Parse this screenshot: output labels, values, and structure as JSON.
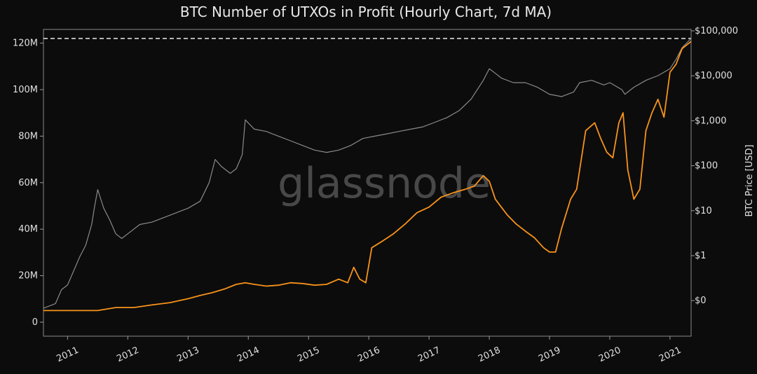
{
  "chart_data": {
    "type": "line",
    "title": "BTC Number of UTXOs in Profit (Hourly Chart, 7d MA)",
    "watermark": "glassnode",
    "xlabel": "",
    "ylabel_left": "",
    "ylabel_right": "BTC Price [USD]",
    "xlim": [
      2010.6,
      2021.35
    ],
    "left_axis": {
      "ylim": [
        0,
        128
      ],
      "ticks": [
        0,
        20,
        40,
        60,
        80,
        100,
        120
      ],
      "tick_labels": [
        "0",
        "20M",
        "40M",
        "60M",
        "80M",
        "100M",
        "120M"
      ]
    },
    "right_axis": {
      "scale": "log",
      "tick_values": [
        0.1,
        1,
        10,
        100,
        1000,
        10000,
        100000
      ],
      "tick_labels": [
        "$0",
        "$1",
        "$10",
        "$100",
        "$1,000",
        "$10,000",
        "$100,000"
      ]
    },
    "x_ticks": [
      2011,
      2012,
      2013,
      2014,
      2015,
      2016,
      2017,
      2018,
      2019,
      2020,
      2021
    ],
    "x_tick_labels": [
      "2011",
      "2012",
      "2013",
      "2014",
      "2015",
      "2016",
      "2017",
      "2018",
      "2019",
      "2020",
      "2021"
    ],
    "reference_line": {
      "axis": "left",
      "value": 122,
      "style": "dashed",
      "color": "#ffffff"
    },
    "series": [
      {
        "name": "",
        "axis": "left",
        "unit": "M",
        "color": "#8a8a8a",
        "x": [
          2010.6,
          2010.7,
          2010.8,
          2010.9,
          2011.0,
          2011.1,
          2011.2,
          2011.3,
          2011.4,
          2011.45,
          2011.5,
          2011.55,
          2011.6,
          2011.7,
          2011.8,
          2011.9,
          2012.0,
          2012.2,
          2012.4,
          2012.6,
          2012.8,
          2013.0,
          2013.2,
          2013.35,
          2013.45,
          2013.55,
          2013.7,
          2013.8,
          2013.9,
          2013.95,
          2014.1,
          2014.3,
          2014.5,
          2014.7,
          2014.9,
          2015.1,
          2015.3,
          2015.5,
          2015.7,
          2015.9,
          2016.1,
          2016.3,
          2016.5,
          2016.7,
          2016.9,
          2017.1,
          2017.3,
          2017.5,
          2017.7,
          2017.9,
          2018.0,
          2018.1,
          2018.2,
          2018.4,
          2018.6,
          2018.8,
          2019.0,
          2019.2,
          2019.4,
          2019.5,
          2019.7,
          2019.9,
          2020.0,
          2020.2,
          2020.25,
          2020.4,
          2020.6,
          2020.8,
          2021.0,
          2021.1,
          2021.2,
          2021.35
        ],
        "values": [
          6,
          7,
          8,
          14,
          16,
          22,
          28,
          33,
          42,
          50,
          57,
          53,
          49,
          44,
          38,
          36,
          38,
          42,
          43,
          45,
          47,
          49,
          52,
          60,
          70,
          67,
          64,
          66,
          72,
          87,
          83,
          82,
          80,
          78,
          76,
          74,
          73,
          74,
          76,
          79,
          80,
          81,
          82,
          83,
          84,
          86,
          88,
          91,
          96,
          104,
          109,
          107,
          105,
          103,
          103,
          101,
          98,
          97,
          99,
          103,
          104,
          102,
          103,
          100,
          98,
          101,
          104,
          106,
          109,
          113,
          118,
          122
        ]
      },
      {
        "name": "",
        "axis": "right",
        "unit": "USD",
        "color": "#f7931a",
        "x": [
          2010.6,
          2010.9,
          2011.2,
          2011.5,
          2011.8,
          2012.1,
          2012.4,
          2012.7,
          2013.0,
          2013.2,
          2013.4,
          2013.6,
          2013.8,
          2013.95,
          2014.1,
          2014.3,
          2014.5,
          2014.7,
          2014.9,
          2015.1,
          2015.3,
          2015.5,
          2015.65,
          2015.75,
          2015.85,
          2015.95,
          2016.05,
          2016.2,
          2016.4,
          2016.6,
          2016.8,
          2017.0,
          2017.2,
          2017.4,
          2017.6,
          2017.75,
          2017.9,
          2018.0,
          2018.1,
          2018.2,
          2018.3,
          2018.45,
          2018.6,
          2018.75,
          2018.9,
          2019.0,
          2019.1,
          2019.2,
          2019.35,
          2019.45,
          2019.6,
          2019.75,
          2019.85,
          2019.95,
          2020.05,
          2020.15,
          2020.22,
          2020.3,
          2020.4,
          2020.5,
          2020.6,
          2020.7,
          2020.8,
          2020.9,
          2021.0,
          2021.1,
          2021.2,
          2021.35
        ],
        "values": [
          0.06,
          0.06,
          0.06,
          0.06,
          0.07,
          0.07,
          0.08,
          0.09,
          0.11,
          0.13,
          0.15,
          0.18,
          0.23,
          0.25,
          0.23,
          0.21,
          0.22,
          0.25,
          0.24,
          0.22,
          0.23,
          0.3,
          0.25,
          0.55,
          0.3,
          0.25,
          1.5,
          2,
          3,
          5,
          9,
          12,
          20,
          25,
          30,
          35,
          60,
          45,
          18,
          12,
          8,
          5,
          3.5,
          2.5,
          1.5,
          1.2,
          1.2,
          4,
          18,
          30,
          600,
          900,
          400,
          200,
          150,
          900,
          1500,
          80,
          18,
          30,
          600,
          1500,
          3000,
          1200,
          12000,
          18000,
          40000,
          58000
        ]
      }
    ]
  }
}
